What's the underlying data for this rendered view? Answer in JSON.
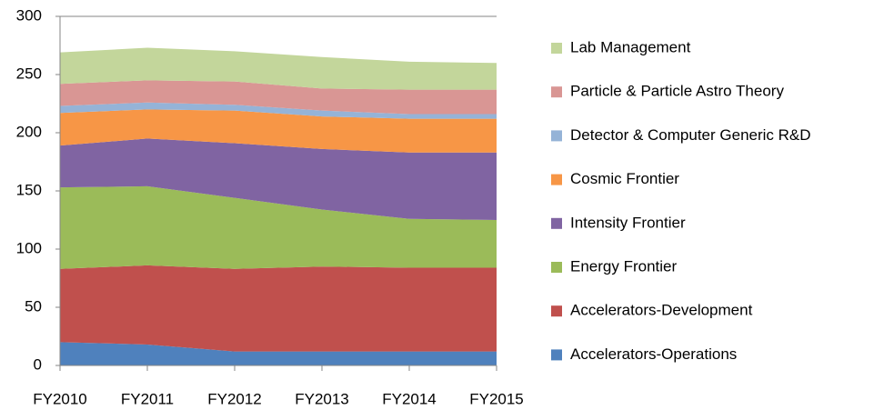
{
  "chart_data": {
    "type": "stacked_area",
    "categories": [
      "FY2010",
      "FY2011",
      "FY2012",
      "FY2013",
      "FY2014",
      "FY2015"
    ],
    "series": [
      {
        "name": "Accelerators-Operations",
        "color": "#4f81bd",
        "values": [
          20,
          18,
          12,
          12,
          12,
          12
        ]
      },
      {
        "name": "Accelerators-Development",
        "color": "#c0504d",
        "values": [
          63,
          68,
          71,
          73,
          72,
          72
        ]
      },
      {
        "name": "Energy Frontier",
        "color": "#9bbb59",
        "values": [
          70,
          68,
          61,
          49,
          42,
          41
        ]
      },
      {
        "name": "Intensity Frontier",
        "color": "#8064a2",
        "values": [
          36,
          41,
          47,
          52,
          57,
          58
        ]
      },
      {
        "name": "Cosmic Frontier",
        "color": "#f79646",
        "values": [
          28,
          25,
          28,
          28,
          29,
          29
        ]
      },
      {
        "name": "Detector & Computer Generic R&D",
        "color": "#95b3d7",
        "values": [
          6,
          6,
          5,
          5,
          4,
          4
        ]
      },
      {
        "name": "Particle & Particle Astro Theory",
        "color": "#d99694",
        "values": [
          19,
          19,
          20,
          19,
          21,
          21
        ]
      },
      {
        "name": "Lab Management",
        "color": "#c3d69b",
        "values": [
          27,
          28,
          26,
          27,
          24,
          23
        ]
      }
    ],
    "ylim": [
      0,
      300
    ],
    "yticks": [
      0,
      50,
      100,
      150,
      200,
      250,
      300
    ],
    "legend": "right"
  }
}
